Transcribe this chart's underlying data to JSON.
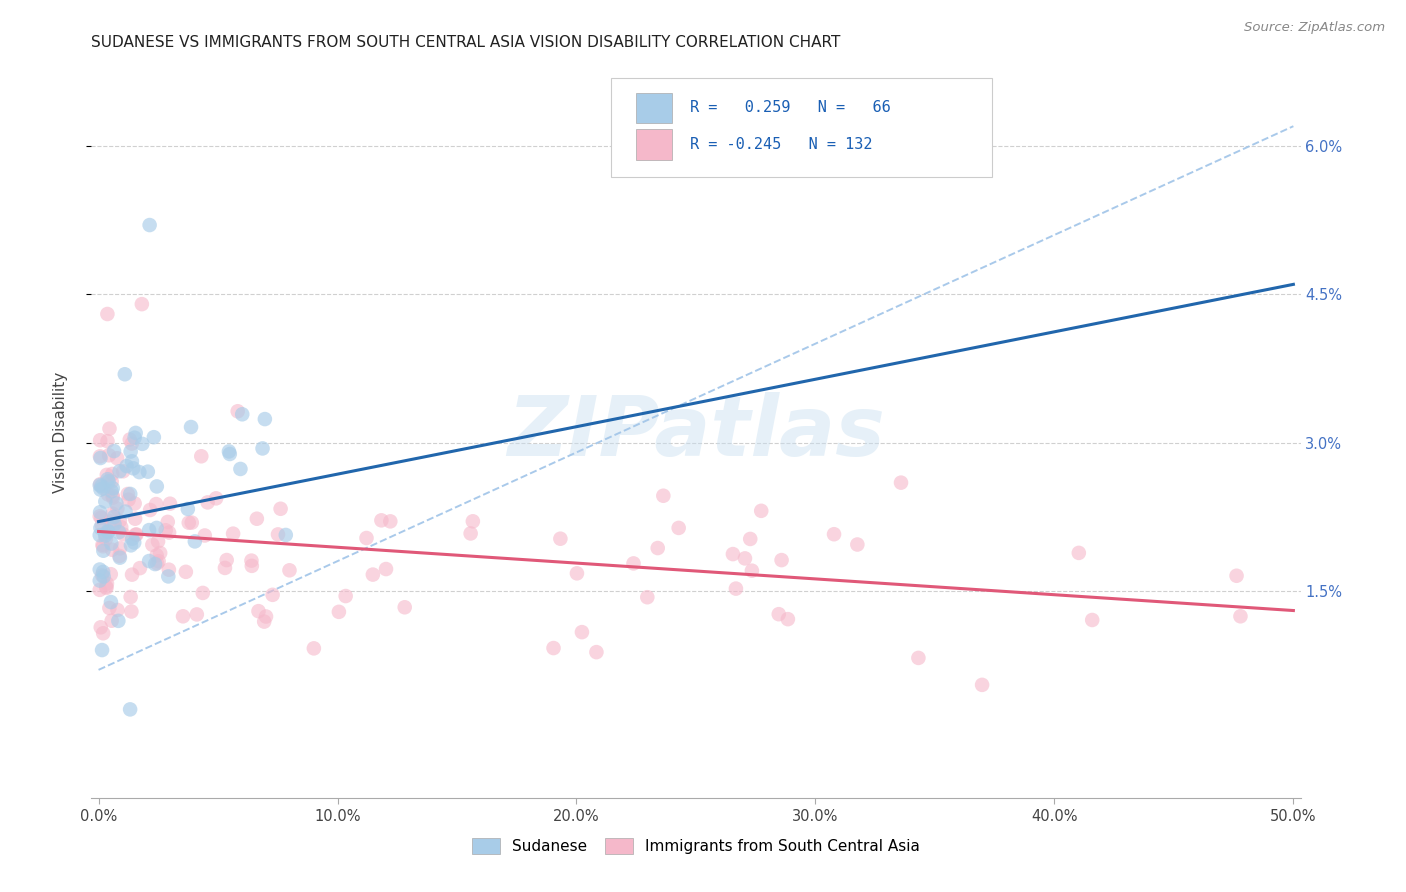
{
  "title": "SUDANESE VS IMMIGRANTS FROM SOUTH CENTRAL ASIA VISION DISABILITY CORRELATION CHART",
  "source": "Source: ZipAtlas.com",
  "ylabel": "Vision Disability",
  "xlim": [
    -0.003,
    0.503
  ],
  "ylim": [
    -0.006,
    0.068
  ],
  "xtick_vals": [
    0.0,
    0.1,
    0.2,
    0.3,
    0.4,
    0.5
  ],
  "xtick_labels": [
    "0.0%",
    "10.0%",
    "20.0%",
    "30.0%",
    "40.0%",
    "50.0%"
  ],
  "ytick_vals": [
    0.015,
    0.03,
    0.045,
    0.06
  ],
  "ytick_labels": [
    "1.5%",
    "3.0%",
    "4.5%",
    "6.0%"
  ],
  "blue_color": "#a8cce8",
  "pink_color": "#f5b8ca",
  "blue_line_color": "#2166ac",
  "pink_line_color": "#e05878",
  "dashed_line_color": "#a0c4e8",
  "grid_color": "#d0d0d0",
  "legend1_R": " 0.259",
  "legend1_N": " 66",
  "legend2_R": "-0.245",
  "legend2_N": "132",
  "blue_line_x0": 0.0,
  "blue_line_y0": 0.022,
  "blue_line_x1": 0.5,
  "blue_line_y1": 0.046,
  "pink_line_x0": 0.0,
  "pink_line_x1": 0.5,
  "pink_line_y0": 0.021,
  "pink_line_y1": 0.013,
  "dash_line_x0": 0.0,
  "dash_line_y0": 0.007,
  "dash_line_x1": 0.5,
  "dash_line_y1": 0.062,
  "watermark_text": "ZIPatlas",
  "title_fontsize": 11,
  "label_fontsize": 11,
  "tick_fontsize": 10.5
}
